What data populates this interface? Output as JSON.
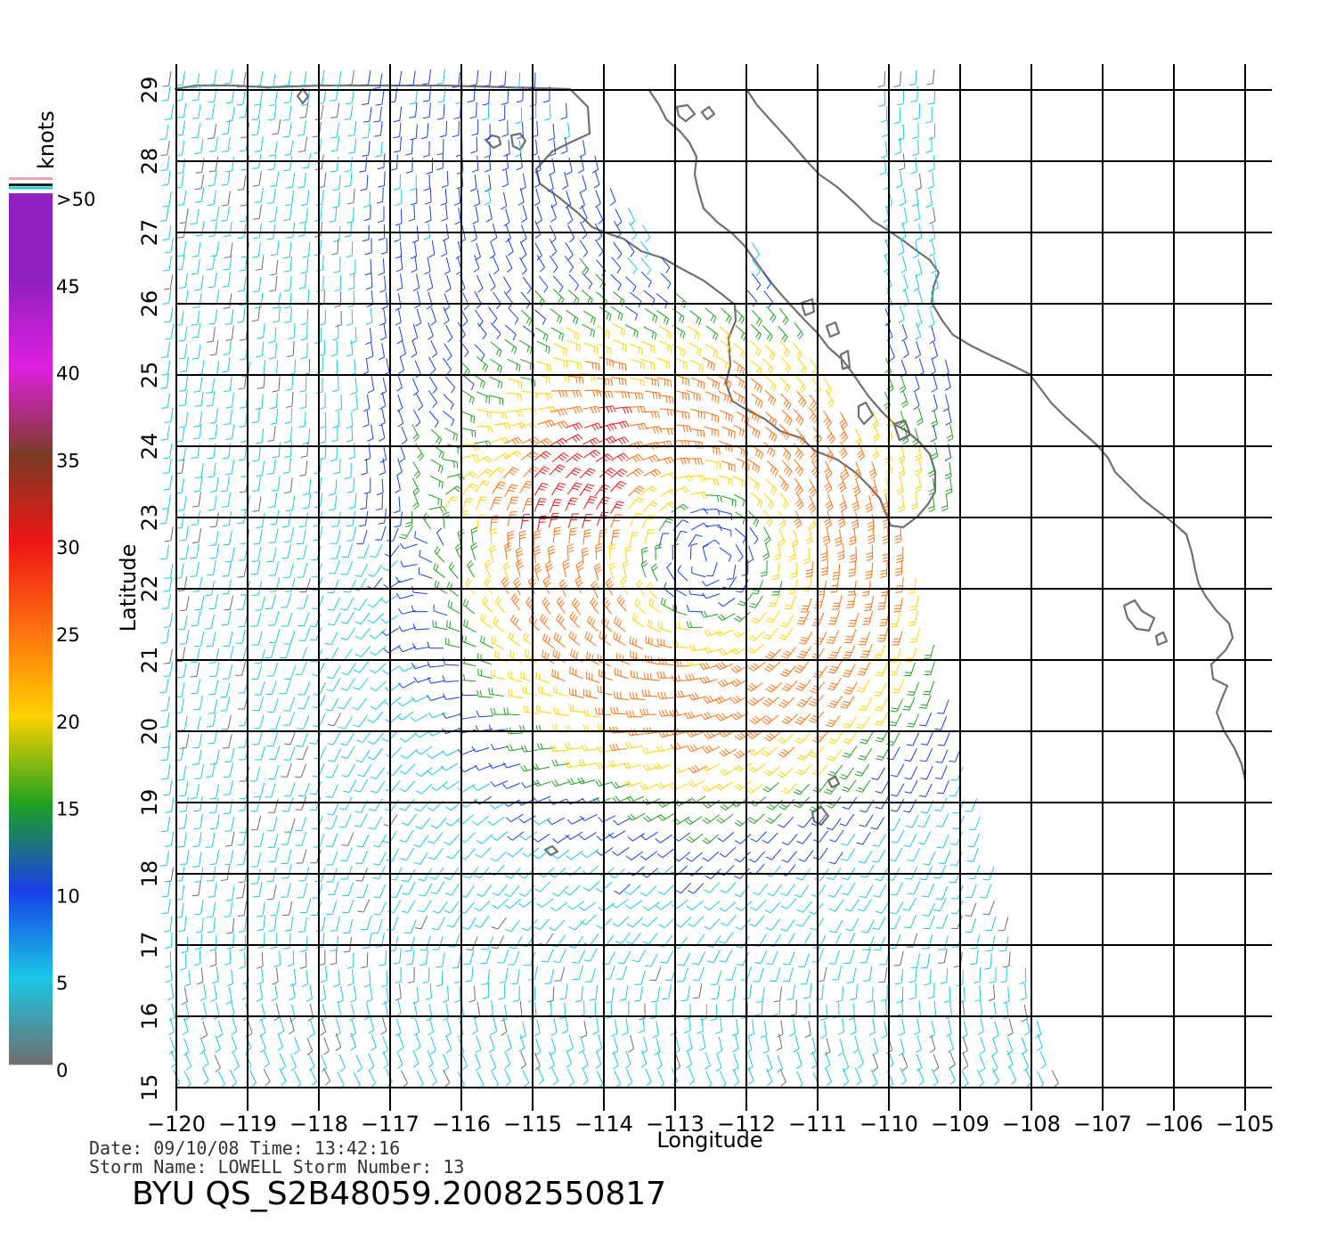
{
  "colors": {
    "grid": "#000000",
    "coast": "#707070",
    "speed_scale": [
      {
        "min": 0,
        "max": 5,
        "color": "#6e6e6e"
      },
      {
        "min": 5,
        "max": 10,
        "color": "#19c8e6"
      },
      {
        "min": 10,
        "max": 15,
        "color": "#1840e8"
      },
      {
        "min": 15,
        "max": 20,
        "color": "#1fa21f"
      },
      {
        "min": 20,
        "max": 25,
        "color": "#ffd200"
      },
      {
        "min": 25,
        "max": 30,
        "color": "#ff7010"
      },
      {
        "min": 30,
        "max": 35,
        "color": "#ee1515"
      },
      {
        "min": 35,
        "max": 40,
        "color": "#7a3b25"
      },
      {
        "min": 40,
        "max": 45,
        "color": "#e020e0"
      },
      {
        "min": 45,
        "max": 50,
        "color": "#9020c0"
      }
    ]
  },
  "legend": {
    "units": "knots",
    "labels": [
      ">50",
      "45",
      "40",
      "35",
      "30",
      "25",
      "20",
      "15",
      "10",
      "5",
      "0"
    ]
  },
  "map": {
    "xlabel": "Longitude",
    "ylabel": "Latitude",
    "lon_range": [
      -120,
      -105
    ],
    "lat_range": [
      15,
      29
    ],
    "lon_ticks": [
      "−120",
      "−119",
      "−118",
      "−117",
      "−116",
      "−115",
      "−114",
      "−113",
      "−112",
      "−111",
      "−110",
      "−109",
      "−108",
      "−107",
      "−106",
      "−105"
    ],
    "lat_ticks": [
      "15",
      "16",
      "17",
      "18",
      "19",
      "20",
      "21",
      "22",
      "23",
      "24",
      "25",
      "26",
      "27",
      "28",
      "29"
    ],
    "storm_center": {
      "lon": -112.5,
      "lat": 22.4
    }
  },
  "meta": {
    "date_time": "Date: 09/10/08   Time: 13:42:16",
    "storm": "Storm Name: LOWELL   Storm Number: 13",
    "file_title": "BYU QS_S2B48059.20082550817"
  }
}
